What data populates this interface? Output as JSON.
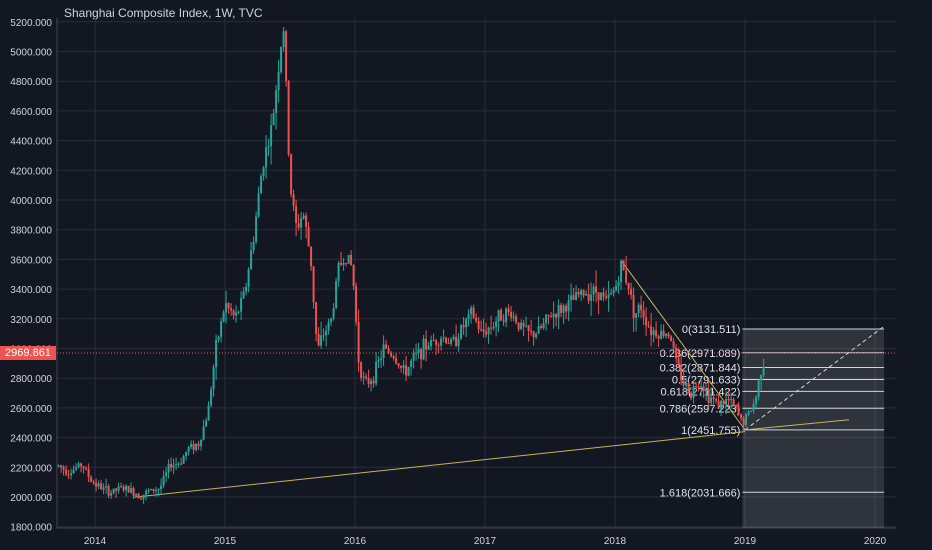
{
  "header": {
    "title": "Shanghai Composite Index, 1W, TVC"
  },
  "price_tag": {
    "label": "2969.861",
    "value": 2969.861
  },
  "colors": {
    "background": "#131722",
    "up": "#26a69a",
    "down": "#ef5350",
    "trendline": "#c9b458",
    "fib_line": "#d1d4dc",
    "price_line": "#ef5350",
    "axis_text": "#d1d4dc"
  },
  "chart_data": {
    "type": "candlestick",
    "title": "Shanghai Composite Index, 1W, TVC",
    "ylim": [
      1800,
      5250
    ],
    "xlim": [
      2013.7,
      2020.4
    ],
    "y_ticks": [
      {
        "value": 1800,
        "label": "1800.000"
      },
      {
        "value": 2000,
        "label": "2000.000"
      },
      {
        "value": 2200,
        "label": "2200.000"
      },
      {
        "value": 2400,
        "label": "2400.000"
      },
      {
        "value": 2600,
        "label": "2600.000"
      },
      {
        "value": 2800,
        "label": "2800.000"
      },
      {
        "value": 3000,
        "label": "3000.000"
      },
      {
        "value": 3200,
        "label": "3200.000"
      },
      {
        "value": 3400,
        "label": "3400.000"
      },
      {
        "value": 3600,
        "label": "3600.000"
      },
      {
        "value": 3800,
        "label": "3800.000"
      },
      {
        "value": 4000,
        "label": "4000.000"
      },
      {
        "value": 4200,
        "label": "4200.000"
      },
      {
        "value": 4400,
        "label": "4400.000"
      },
      {
        "value": 4600,
        "label": "4600.000"
      },
      {
        "value": 4800,
        "label": "4800.000"
      },
      {
        "value": 5000,
        "label": "5000.000"
      },
      {
        "value": 5200,
        "label": "5200.000"
      }
    ],
    "x_ticks": [
      {
        "value": 2014,
        "label": "2014"
      },
      {
        "value": 2015,
        "label": "2015"
      },
      {
        "value": 2016,
        "label": "2016"
      },
      {
        "value": 2017,
        "label": "2017"
      },
      {
        "value": 2018,
        "label": "2018"
      },
      {
        "value": 2019,
        "label": "2019"
      },
      {
        "value": 2020,
        "label": "2020"
      }
    ],
    "price_points": [
      [
        2013.72,
        2210
      ],
      [
        2013.8,
        2170
      ],
      [
        2013.9,
        2220
      ],
      [
        2013.97,
        2110
      ],
      [
        2014.05,
        2060
      ],
      [
        2014.12,
        2030
      ],
      [
        2014.2,
        2060
      ],
      [
        2014.28,
        2040
      ],
      [
        2014.35,
        2010
      ],
      [
        2014.42,
        2040
      ],
      [
        2014.5,
        2060
      ],
      [
        2014.58,
        2220
      ],
      [
        2014.65,
        2230
      ],
      [
        2014.72,
        2330
      ],
      [
        2014.8,
        2360
      ],
      [
        2014.87,
        2580
      ],
      [
        2014.93,
        3000
      ],
      [
        2015.0,
        3300
      ],
      [
        2015.08,
        3200
      ],
      [
        2015.15,
        3370
      ],
      [
        2015.22,
        3750
      ],
      [
        2015.29,
        4250
      ],
      [
        2015.36,
        4480
      ],
      [
        2015.41,
        4900
      ],
      [
        2015.45,
        5170
      ],
      [
        2015.5,
        4100
      ],
      [
        2015.55,
        3800
      ],
      [
        2015.6,
        3920
      ],
      [
        2015.66,
        3600
      ],
      [
        2015.71,
        2980
      ],
      [
        2015.76,
        3100
      ],
      [
        2015.82,
        3200
      ],
      [
        2015.87,
        3540
      ],
      [
        2015.93,
        3630
      ],
      [
        2015.98,
        3540
      ],
      [
        2016.03,
        2900
      ],
      [
        2016.08,
        2750
      ],
      [
        2016.15,
        2830
      ],
      [
        2016.22,
        3000
      ],
      [
        2016.3,
        2950
      ],
      [
        2016.38,
        2830
      ],
      [
        2016.45,
        2930
      ],
      [
        2016.52,
        3000
      ],
      [
        2016.6,
        3050
      ],
      [
        2016.67,
        3080
      ],
      [
        2016.75,
        3030
      ],
      [
        2016.82,
        3130
      ],
      [
        2016.9,
        3240
      ],
      [
        2016.97,
        3100
      ],
      [
        2017.05,
        3150
      ],
      [
        2017.12,
        3230
      ],
      [
        2017.2,
        3240
      ],
      [
        2017.27,
        3150
      ],
      [
        2017.35,
        3090
      ],
      [
        2017.42,
        3120
      ],
      [
        2017.5,
        3220
      ],
      [
        2017.58,
        3260
      ],
      [
        2017.65,
        3300
      ],
      [
        2017.72,
        3360
      ],
      [
        2017.8,
        3380
      ],
      [
        2017.87,
        3390
      ],
      [
        2017.93,
        3310
      ],
      [
        2018.0,
        3400
      ],
      [
        2018.05,
        3560
      ],
      [
        2018.1,
        3440
      ],
      [
        2018.15,
        3230
      ],
      [
        2018.2,
        3280
      ],
      [
        2018.27,
        3130
      ],
      [
        2018.35,
        3100
      ],
      [
        2018.42,
        3110
      ],
      [
        2018.47,
        2910
      ],
      [
        2018.52,
        2780
      ],
      [
        2018.58,
        2700
      ],
      [
        2018.65,
        2790
      ],
      [
        2018.72,
        2680
      ],
      [
        2018.8,
        2620
      ],
      [
        2018.87,
        2650
      ],
      [
        2018.93,
        2590
      ],
      [
        2018.98,
        2500
      ],
      [
        2019.03,
        2560
      ],
      [
        2019.08,
        2650
      ],
      [
        2019.12,
        2850
      ],
      [
        2019.16,
        2970
      ]
    ],
    "trendlines": [
      {
        "from": [
          2014.3,
          1998
        ],
        "to": [
          2019.0,
          2440
        ]
      },
      {
        "from": [
          2019.0,
          2452
        ],
        "to": [
          2019.8,
          2520
        ]
      },
      {
        "from": [
          2018.05,
          3590
        ],
        "to": [
          2019.0,
          2452
        ]
      }
    ],
    "dashed_line": {
      "from": [
        2019.0,
        2452
      ],
      "to": [
        2020.07,
        3150
      ]
    },
    "fib_retracement": {
      "x_range": [
        2018.98,
        2020.07
      ],
      "levels": [
        {
          "ratio": "0",
          "value": 3131.511,
          "label": "0(3131.511)"
        },
        {
          "ratio": "0.236",
          "value": 2971.089,
          "label": "0.236(2971.089)"
        },
        {
          "ratio": "0.382",
          "value": 2871.844,
          "label": "0.382(2871.844)"
        },
        {
          "ratio": "0.5",
          "value": 2791.633,
          "label": "0.5(2791.633)"
        },
        {
          "ratio": "0.618",
          "value": 2711.422,
          "label": "0.618(2711.422)"
        },
        {
          "ratio": "0.786",
          "value": 2597.223,
          "label": "0.786(2597.223)"
        },
        {
          "ratio": "1",
          "value": 2451.755,
          "label": "1(2451.755)"
        },
        {
          "ratio": "1.618",
          "value": 2031.666,
          "label": "1.618(2031.666)"
        }
      ]
    },
    "current_price": 2969.861
  }
}
